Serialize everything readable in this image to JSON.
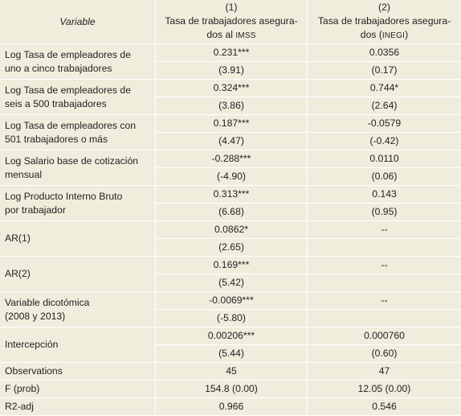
{
  "header": {
    "variable": "Variable",
    "col1_num": "(1)",
    "col1_line1": "Tasa de trabajadores asegura-",
    "col1_line2_pre": "dos al ",
    "col1_line2_sub": "IMSS",
    "col2_num": "(2)",
    "col2_line1": "Tasa de trabajadores asegura-",
    "col2_line2_pre": "dos (",
    "col2_line2_sub": "INEGI",
    "col2_line2_post": ")"
  },
  "rows": [
    {
      "l1": "Log Tasa de empleadores de",
      "l2": "uno a cinco trabajadores",
      "c1": "0.231***",
      "c1se": "(3.91)",
      "c2": "0.0356",
      "c2se": "(0.17)"
    },
    {
      "l1": "Log Tasa de empleadores de",
      "l2": "seis a 500 trabajadores",
      "c1": "0.324***",
      "c1se": "(3.86)",
      "c2": "0.744*",
      "c2se": "(2.64)"
    },
    {
      "l1": "Log Tasa de empleadores con",
      "l2": "501 trabajadores o más",
      "c1": "0.187***",
      "c1se": "(4.47)",
      "c2": "-0.0579",
      "c2se": "(-0.42)"
    },
    {
      "l1": "Log Salario base de cotización",
      "l2": "mensual",
      "c1": "-0.288***",
      "c1se": "(-4.90)",
      "c2": "0.0110",
      "c2se": "(0.06)"
    },
    {
      "l1": "Log Producto Interno Bruto",
      "l2": "por trabajador",
      "c1": "0.313***",
      "c1se": "(6.68)",
      "c2": "0.143",
      "c2se": "(0.95)"
    },
    {
      "l1": "AR(1)",
      "l2": "",
      "c1": "0.0862*",
      "c1se": "(2.65)",
      "c2": "--",
      "c2se": ""
    },
    {
      "l1": "AR(2)",
      "l2": "",
      "c1": "0.169***",
      "c1se": "(5.42)",
      "c2": "--",
      "c2se": ""
    },
    {
      "l1": "Variable dicotómica",
      "l2": "(2008 y 2013)",
      "c1": "-0.0069***",
      "c1se": "(-5.80)",
      "c2": "--",
      "c2se": ""
    },
    {
      "l1": "Intercepción",
      "l2": "",
      "c1": "0.00206***",
      "c1se": "(5.44)",
      "c2": "0.000760",
      "c2se": "(0.60)"
    }
  ],
  "stats": [
    {
      "label": "Observations",
      "c1": "45",
      "c2": "47"
    },
    {
      "label": "F (prob)",
      "c1": "154.8 (0.00)",
      "c2": "12.05 (0.00)"
    },
    {
      "label": "R2-adj",
      "c1": "0.966",
      "c2": "0.546"
    }
  ]
}
